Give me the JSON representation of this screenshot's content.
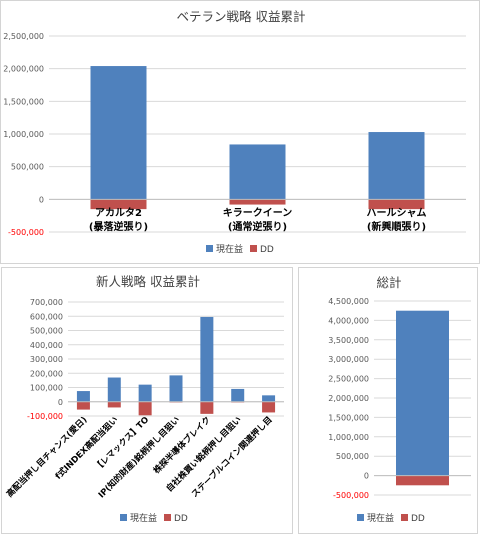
{
  "colors": {
    "current": "#4f81bd",
    "dd": "#c0504d",
    "grid": "#d9d9d9",
    "negative_tick": "#ff0000"
  },
  "chart_data": [
    {
      "type": "bar",
      "title": "ベテラン戦略 収益累計",
      "categories": [
        "アカルタ2\n(暴落逆張り)",
        "キラークイーン\n(通常逆張り)",
        "ハールシャム\n(新興順張り)"
      ],
      "series": [
        {
          "name": "現在益",
          "values": [
            2040000,
            840000,
            1030000
          ]
        },
        {
          "name": "DD",
          "values": [
            -150000,
            -80000,
            -150000
          ]
        }
      ],
      "ylim": [
        -500000,
        2500000
      ],
      "yticks": [
        "-500,000",
        "0",
        "500,000",
        "1,000,000",
        "1,500,000",
        "2,000,000",
        "2,500,000"
      ],
      "grid": true,
      "legend": "bottom"
    },
    {
      "type": "bar",
      "title": "新人戦略 収益累計",
      "categories": [
        "高配当押し目チャンス(愛日)",
        "f式INDEX高配当狙い",
        "【レマックス】TO",
        "IP(知的財産)銘柄押し目狙い",
        "株探半導体ブレイク",
        "自社株買い銘柄押し目狙い",
        "ステーブルコイン関連押し目"
      ],
      "series": [
        {
          "name": "現在益",
          "values": [
            75000,
            170000,
            120000,
            185000,
            595000,
            90000,
            45000
          ]
        },
        {
          "name": "DD",
          "values": [
            -55000,
            -40000,
            -95000,
            -5000,
            -85000,
            -5000,
            -75000
          ]
        }
      ],
      "ylim": [
        -100000,
        700000
      ],
      "yticks": [
        "-100,000",
        "0",
        "100,000",
        "200,000",
        "300,000",
        "400,000",
        "500,000",
        "600,000",
        "700,000"
      ],
      "grid": true,
      "legend": "bottom"
    },
    {
      "type": "bar",
      "title": "総計",
      "categories": [
        ""
      ],
      "series": [
        {
          "name": "現在益",
          "values": [
            4250000
          ]
        },
        {
          "name": "DD",
          "values": [
            -250000
          ]
        }
      ],
      "ylim": [
        -500000,
        4500000
      ],
      "yticks": [
        "-500,000",
        "0",
        "500,000",
        "1,000,000",
        "1,500,000",
        "2,000,000",
        "2,500,000",
        "3,000,000",
        "3,500,000",
        "4,000,000",
        "4,500,000"
      ],
      "grid": true,
      "legend": "bottom"
    }
  ]
}
